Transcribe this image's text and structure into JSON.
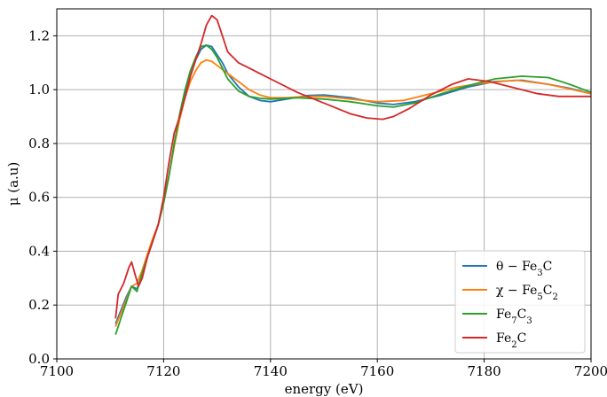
{
  "chart_data": {
    "type": "line",
    "xlabel": "energy (eV)",
    "ylabel": "μ (a.u)",
    "xlim": [
      7100,
      7200
    ],
    "ylim": [
      0.0,
      1.3
    ],
    "xticks": [
      7100,
      7120,
      7140,
      7160,
      7180,
      7200
    ],
    "xtick_labels": [
      "7100",
      "7120",
      "7140",
      "7160",
      "7180",
      "7200"
    ],
    "yticks": [
      0.0,
      0.2,
      0.4,
      0.6,
      0.8,
      1.0,
      1.2
    ],
    "ytick_labels": [
      "0.0",
      "0.2",
      "0.4",
      "0.6",
      "0.8",
      "1.0",
      "1.2"
    ],
    "grid": true,
    "legend_position": "bottom-right",
    "series": [
      {
        "name": "θ − Fe₃C",
        "label_parts": [
          [
            "θ − Fe",
            "base"
          ],
          [
            "3",
            "sub"
          ],
          [
            "C",
            "base"
          ]
        ],
        "color": "#1f77b4",
        "points": [
          [
            7111,
            0.13
          ],
          [
            7112,
            0.18
          ],
          [
            7113,
            0.23
          ],
          [
            7114,
            0.27
          ],
          [
            7115,
            0.26
          ],
          [
            7116,
            0.31
          ],
          [
            7117,
            0.38
          ],
          [
            7118,
            0.44
          ],
          [
            7119,
            0.5
          ],
          [
            7120,
            0.58
          ],
          [
            7121,
            0.68
          ],
          [
            7122,
            0.8
          ],
          [
            7123,
            0.9
          ],
          [
            7124,
            0.98
          ],
          [
            7125,
            1.05
          ],
          [
            7126,
            1.11
          ],
          [
            7127,
            1.15
          ],
          [
            7128,
            1.165
          ],
          [
            7129,
            1.16
          ],
          [
            7130,
            1.13
          ],
          [
            7131,
            1.1
          ],
          [
            7132,
            1.06
          ],
          [
            7134,
            1.01
          ],
          [
            7136,
            0.975
          ],
          [
            7138,
            0.96
          ],
          [
            7140,
            0.955
          ],
          [
            7143,
            0.965
          ],
          [
            7147,
            0.978
          ],
          [
            7150,
            0.98
          ],
          [
            7155,
            0.97
          ],
          [
            7160,
            0.95
          ],
          [
            7163,
            0.945
          ],
          [
            7167,
            0.955
          ],
          [
            7172,
            0.98
          ],
          [
            7177,
            1.01
          ],
          [
            7182,
            1.03
          ],
          [
            7187,
            1.035
          ],
          [
            7192,
            1.02
          ],
          [
            7196,
            1.005
          ],
          [
            7200,
            0.985
          ]
        ]
      },
      {
        "name": "χ − Fe₅C₂",
        "label_parts": [
          [
            "χ − Fe",
            "base"
          ],
          [
            "5",
            "sub"
          ],
          [
            "C",
            "base"
          ],
          [
            "2",
            "sub"
          ]
        ],
        "color": "#ff7f0e",
        "points": [
          [
            7111,
            0.12
          ],
          [
            7112,
            0.17
          ],
          [
            7113,
            0.22
          ],
          [
            7114,
            0.27
          ],
          [
            7115,
            0.28
          ],
          [
            7116,
            0.33
          ],
          [
            7117,
            0.39
          ],
          [
            7118,
            0.45
          ],
          [
            7119,
            0.5
          ],
          [
            7120,
            0.58
          ],
          [
            7121,
            0.68
          ],
          [
            7122,
            0.79
          ],
          [
            7123,
            0.89
          ],
          [
            7124,
            0.97
          ],
          [
            7125,
            1.03
          ],
          [
            7126,
            1.07
          ],
          [
            7127,
            1.1
          ],
          [
            7128,
            1.11
          ],
          [
            7129,
            1.105
          ],
          [
            7130,
            1.09
          ],
          [
            7132,
            1.06
          ],
          [
            7134,
            1.03
          ],
          [
            7136,
            1.0
          ],
          [
            7138,
            0.98
          ],
          [
            7140,
            0.97
          ],
          [
            7143,
            0.97
          ],
          [
            7147,
            0.975
          ],
          [
            7150,
            0.975
          ],
          [
            7155,
            0.965
          ],
          [
            7160,
            0.955
          ],
          [
            7165,
            0.96
          ],
          [
            7170,
            0.985
          ],
          [
            7175,
            1.01
          ],
          [
            7180,
            1.025
          ],
          [
            7186,
            1.035
          ],
          [
            7192,
            1.02
          ],
          [
            7200,
            0.985
          ]
        ]
      },
      {
        "name": "Fe₇C₃",
        "label_parts": [
          [
            "Fe",
            "base"
          ],
          [
            "7",
            "sub"
          ],
          [
            "C",
            "base"
          ],
          [
            "3",
            "sub"
          ]
        ],
        "color": "#2ca02c",
        "points": [
          [
            7111,
            0.09
          ],
          [
            7112,
            0.15
          ],
          [
            7113,
            0.21
          ],
          [
            7114,
            0.27
          ],
          [
            7115,
            0.25
          ],
          [
            7116,
            0.32
          ],
          [
            7117,
            0.38
          ],
          [
            7118,
            0.44
          ],
          [
            7119,
            0.5
          ],
          [
            7120,
            0.58
          ],
          [
            7121,
            0.68
          ],
          [
            7122,
            0.8
          ],
          [
            7123,
            0.91
          ],
          [
            7124,
            1.0
          ],
          [
            7125,
            1.07
          ],
          [
            7126,
            1.12
          ],
          [
            7127,
            1.16
          ],
          [
            7128,
            1.165
          ],
          [
            7129,
            1.15
          ],
          [
            7130,
            1.12
          ],
          [
            7131,
            1.08
          ],
          [
            7132,
            1.04
          ],
          [
            7134,
            0.995
          ],
          [
            7136,
            0.975
          ],
          [
            7138,
            0.968
          ],
          [
            7140,
            0.965
          ],
          [
            7145,
            0.97
          ],
          [
            7150,
            0.965
          ],
          [
            7155,
            0.955
          ],
          [
            7160,
            0.94
          ],
          [
            7163,
            0.935
          ],
          [
            7167,
            0.95
          ],
          [
            7172,
            0.985
          ],
          [
            7177,
            1.015
          ],
          [
            7182,
            1.04
          ],
          [
            7187,
            1.05
          ],
          [
            7192,
            1.045
          ],
          [
            7196,
            1.02
          ],
          [
            7200,
            0.99
          ]
        ]
      },
      {
        "name": "Fe₂C",
        "label_parts": [
          [
            "Fe",
            "base"
          ],
          [
            "2",
            "sub"
          ],
          [
            "C",
            "base"
          ]
        ],
        "color": "#d62728",
        "points": [
          [
            7111,
            0.15
          ],
          [
            7111.5,
            0.24
          ],
          [
            7112.5,
            0.28
          ],
          [
            7113.5,
            0.34
          ],
          [
            7114,
            0.36
          ],
          [
            7114.7,
            0.31
          ],
          [
            7115.3,
            0.27
          ],
          [
            7116,
            0.3
          ],
          [
            7117,
            0.38
          ],
          [
            7118,
            0.44
          ],
          [
            7119,
            0.5
          ],
          [
            7120,
            0.6
          ],
          [
            7121,
            0.73
          ],
          [
            7122,
            0.84
          ],
          [
            7123,
            0.9
          ],
          [
            7124,
            0.97
          ],
          [
            7125,
            1.05
          ],
          [
            7126,
            1.11
          ],
          [
            7127,
            1.17
          ],
          [
            7128,
            1.24
          ],
          [
            7129,
            1.275
          ],
          [
            7130,
            1.26
          ],
          [
            7131,
            1.2
          ],
          [
            7132,
            1.14
          ],
          [
            7134,
            1.1
          ],
          [
            7136,
            1.08
          ],
          [
            7138,
            1.06
          ],
          [
            7140,
            1.04
          ],
          [
            7145,
            0.99
          ],
          [
            7150,
            0.95
          ],
          [
            7155,
            0.91
          ],
          [
            7158,
            0.895
          ],
          [
            7161,
            0.89
          ],
          [
            7163,
            0.9
          ],
          [
            7166,
            0.93
          ],
          [
            7170,
            0.98
          ],
          [
            7174,
            1.02
          ],
          [
            7177,
            1.04
          ],
          [
            7181,
            1.03
          ],
          [
            7185,
            1.01
          ],
          [
            7190,
            0.985
          ],
          [
            7194,
            0.975
          ],
          [
            7200,
            0.975
          ]
        ]
      }
    ]
  }
}
